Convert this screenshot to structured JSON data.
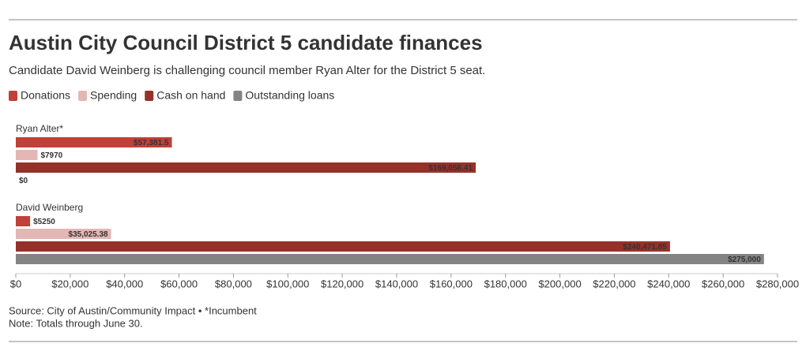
{
  "chart_data": {
    "type": "hbar",
    "title": "Austin City Council District 5 candidate finances",
    "subtitle": "Candidate David Weinberg is challenging council member Ryan Alter for the District 5 seat.",
    "source": "Source: City of Austin/Community Impact • *Incumbent",
    "note": "Note: Totals through June 30.",
    "categories": [
      "Ryan Alter*",
      "David Weinberg"
    ],
    "series": [
      {
        "name": "Donations",
        "color": "#c0403a",
        "values": [
          57381.5,
          5250
        ],
        "value_labels": [
          "$57,381.5",
          "$5250"
        ]
      },
      {
        "name": "Spending",
        "color": "#e3b7b4",
        "values": [
          7970,
          35025.38
        ],
        "value_labels": [
          "$7970",
          "$35,025.38"
        ]
      },
      {
        "name": "Cash on hand",
        "color": "#963129",
        "values": [
          169056.41,
          240471.85
        ],
        "value_labels": [
          "$169,056.41",
          "$240,471.85"
        ]
      },
      {
        "name": "Outstanding loans",
        "color": "#838383",
        "values": [
          0,
          275000
        ],
        "value_labels": [
          "$0",
          "$275,000"
        ]
      }
    ],
    "xlim": [
      0,
      280000
    ],
    "xticks": [
      {
        "value": 0,
        "label": "$0"
      },
      {
        "value": 20000,
        "label": "$20,000"
      },
      {
        "value": 40000,
        "label": "$40,000"
      },
      {
        "value": 60000,
        "label": "$60,000"
      },
      {
        "value": 80000,
        "label": "$80,000"
      },
      {
        "value": 100000,
        "label": "$100,000"
      },
      {
        "value": 120000,
        "label": "$120,000"
      },
      {
        "value": 140000,
        "label": "$140,000"
      },
      {
        "value": 160000,
        "label": "$160,000"
      },
      {
        "value": 180000,
        "label": "$180,000"
      },
      {
        "value": 200000,
        "label": "$200,000"
      },
      {
        "value": 220000,
        "label": "$220,000"
      },
      {
        "value": 240000,
        "label": "$240,000"
      },
      {
        "value": 260000,
        "label": "$260,000"
      },
      {
        "value": 280000,
        "label": "$280,000"
      }
    ]
  }
}
